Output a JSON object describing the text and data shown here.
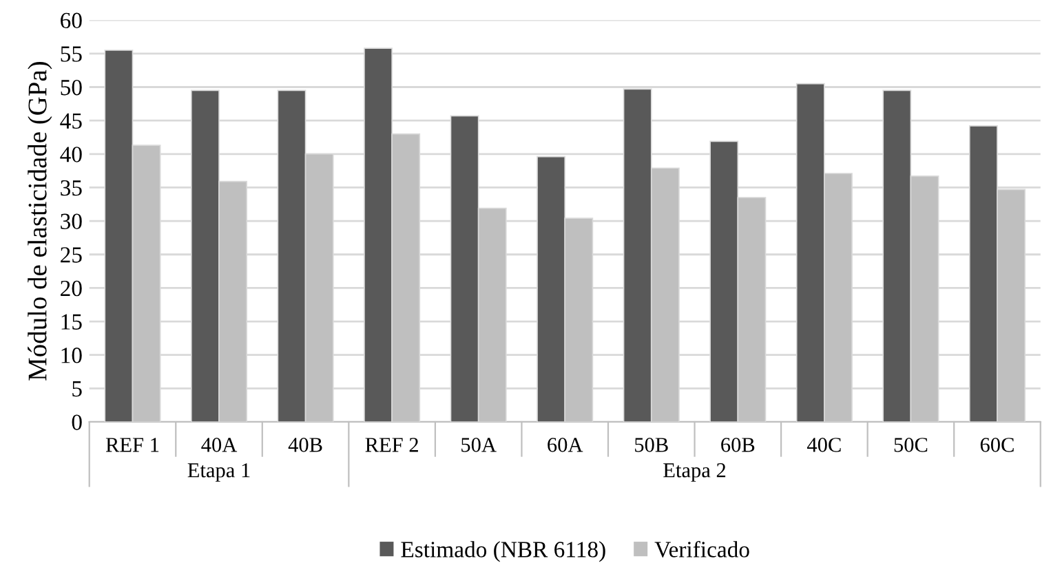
{
  "chart_data": {
    "type": "bar",
    "ylabel": "Módulo de elasticidade (GPa)",
    "categories": [
      "REF 1",
      "40A",
      "40B",
      "REF 2",
      "50A",
      "60A",
      "50B",
      "60B",
      "40C",
      "50C",
      "60C"
    ],
    "series": [
      {
        "name": "Estimado (NBR 6118)",
        "color": "#595959",
        "values": [
          55.5,
          49.5,
          49.5,
          55.8,
          45.7,
          39.6,
          49.7,
          41.9,
          50.5,
          49.5,
          44.2
        ]
      },
      {
        "name": "Verificado",
        "color": "#bfbfbf",
        "values": [
          41.3,
          35.9,
          40.0,
          43.0,
          31.9,
          30.4,
          37.9,
          33.5,
          37.1,
          36.7,
          34.7
        ]
      }
    ],
    "ylim": [
      0,
      60
    ],
    "yticks": [
      0,
      5,
      10,
      15,
      20,
      25,
      30,
      35,
      40,
      45,
      50,
      55,
      60
    ],
    "grid": "y",
    "legend": "bottom",
    "annotations": [
      "Etapa 1",
      "Etapa 2"
    ]
  }
}
